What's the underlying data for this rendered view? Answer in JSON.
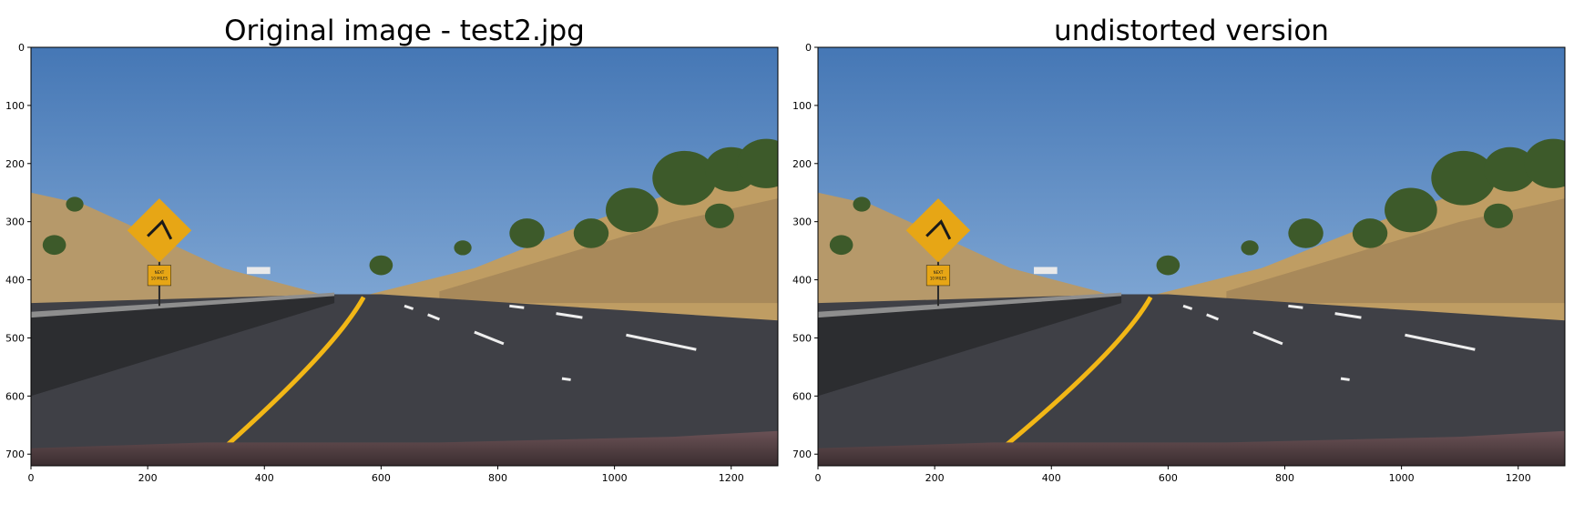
{
  "panels": [
    {
      "title": "Original image - test2.jpg",
      "x_ticks": [
        "0",
        "200",
        "400",
        "600",
        "800",
        "1000",
        "1200"
      ],
      "y_ticks": [
        "0",
        "100",
        "200",
        "300",
        "400",
        "500",
        "600",
        "700"
      ],
      "image_width": 1280,
      "image_height": 720
    },
    {
      "title": "undistorted version",
      "x_ticks": [
        "0",
        "200",
        "400",
        "600",
        "800",
        "1000",
        "1200"
      ],
      "y_ticks": [
        "0",
        "100",
        "200",
        "300",
        "400",
        "500",
        "600",
        "700"
      ],
      "image_width": 1280,
      "image_height": 720
    }
  ],
  "sign": {
    "plaque_line1": "NEXT",
    "plaque_line2": "10 MILES"
  },
  "colors": {
    "sky_top": "#4577b5",
    "sky_bottom": "#a2c3e6",
    "asphalt": "#3f4046",
    "yellow_line": "#f2b716",
    "sign_yellow": "#e7a615",
    "hill": "#b6996a",
    "tree": "#3d5a2a",
    "hood": "#5b4547"
  }
}
